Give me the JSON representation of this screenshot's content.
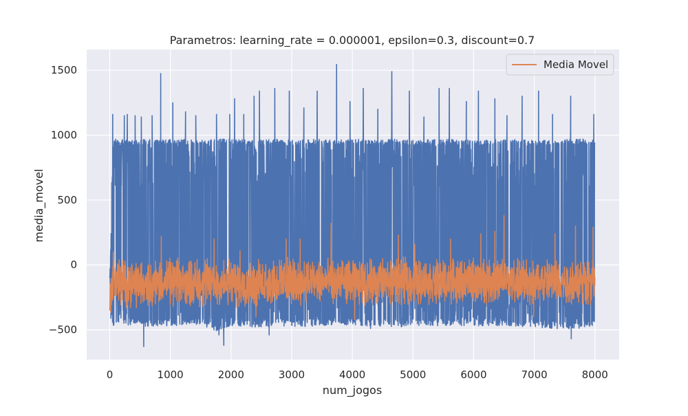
{
  "chart_data": {
    "type": "line",
    "title": "Parametros: learning_rate = 0.000001, epsilon=0.3, discount=0.7",
    "xlabel": "num_jogos",
    "ylabel": "media_movel",
    "xlim": [
      -380,
      8400
    ],
    "ylim": [
      -730,
      1660
    ],
    "xticks": [
      0,
      1000,
      2000,
      3000,
      4000,
      5000,
      6000,
      7000,
      8000
    ],
    "xtick_labels": [
      "0",
      "1000",
      "2000",
      "3000",
      "4000",
      "5000",
      "6000",
      "7000",
      "8000"
    ],
    "yticks": [
      -500,
      0,
      500,
      1000,
      1500
    ],
    "ytick_labels": [
      "−500",
      "0",
      "500",
      "1000",
      "1500"
    ],
    "grid": true,
    "legend_position": "top-right",
    "legend_entries": [
      "Media Movel"
    ],
    "series": [
      {
        "id": "raw",
        "color": "#4c72b0",
        "n_points": 8000,
        "x_range": [
          0,
          8000
        ],
        "envelope": {
          "x": [
            0,
            20,
            40,
            60,
            100,
            200,
            400,
            600,
            800,
            1000,
            1500,
            1800,
            2000,
            2400,
            2800,
            3000,
            3500,
            3700,
            4000,
            4500,
            4650,
            5000,
            5500,
            6000,
            6500,
            7000,
            7600,
            8000
          ],
          "low": [
            -460,
            -420,
            -440,
            -480,
            -470,
            -470,
            -460,
            -480,
            -470,
            -470,
            -460,
            -520,
            -470,
            -480,
            -470,
            -480,
            -470,
            -460,
            -470,
            -470,
            -480,
            -480,
            -470,
            -470,
            -470,
            -480,
            -500,
            -470
          ],
          "high": [
            -90,
            200,
            850,
            950,
            970,
            970,
            960,
            970,
            960,
            970,
            960,
            970,
            970,
            960,
            970,
            960,
            970,
            960,
            970,
            960,
            970,
            960,
            970,
            960,
            970,
            960,
            970,
            970
          ]
        },
        "peaks": [
          {
            "x": 50,
            "y": 1160
          },
          {
            "x": 240,
            "y": 1150
          },
          {
            "x": 290,
            "y": 1160
          },
          {
            "x": 420,
            "y": 1150
          },
          {
            "x": 520,
            "y": 1140
          },
          {
            "x": 700,
            "y": 1150
          },
          {
            "x": 840,
            "y": 1475
          },
          {
            "x": 1040,
            "y": 1250
          },
          {
            "x": 1250,
            "y": 1180
          },
          {
            "x": 1420,
            "y": 1150
          },
          {
            "x": 1760,
            "y": 1160
          },
          {
            "x": 1980,
            "y": 1160
          },
          {
            "x": 2060,
            "y": 1280
          },
          {
            "x": 2210,
            "y": 1160
          },
          {
            "x": 2380,
            "y": 1300
          },
          {
            "x": 2470,
            "y": 1340
          },
          {
            "x": 2720,
            "y": 1360
          },
          {
            "x": 2960,
            "y": 1340
          },
          {
            "x": 3200,
            "y": 1210
          },
          {
            "x": 3420,
            "y": 1340
          },
          {
            "x": 3740,
            "y": 1545
          },
          {
            "x": 3960,
            "y": 1260
          },
          {
            "x": 4180,
            "y": 1360
          },
          {
            "x": 4420,
            "y": 1200
          },
          {
            "x": 4650,
            "y": 1490
          },
          {
            "x": 4940,
            "y": 1340
          },
          {
            "x": 5180,
            "y": 1140
          },
          {
            "x": 5430,
            "y": 1360
          },
          {
            "x": 5600,
            "y": 1360
          },
          {
            "x": 5880,
            "y": 1260
          },
          {
            "x": 6080,
            "y": 1340
          },
          {
            "x": 6350,
            "y": 1280
          },
          {
            "x": 6550,
            "y": 1150
          },
          {
            "x": 6800,
            "y": 1300
          },
          {
            "x": 7070,
            "y": 1340
          },
          {
            "x": 7300,
            "y": 1160
          },
          {
            "x": 7600,
            "y": 1300
          },
          {
            "x": 7980,
            "y": 1160
          }
        ],
        "troughs": [
          {
            "x": 560,
            "y": -630
          },
          {
            "x": 1800,
            "y": -540
          },
          {
            "x": 1880,
            "y": -620
          },
          {
            "x": 2630,
            "y": -540
          },
          {
            "x": 4300,
            "y": -490
          },
          {
            "x": 7610,
            "y": -570
          }
        ]
      },
      {
        "id": "media-movel",
        "name": "Media Movel",
        "color": "#dd8452",
        "n_points": 8000,
        "x_range": [
          0,
          8000
        ],
        "envelope": {
          "x": [
            0,
            20,
            60,
            100,
            200,
            500,
            900,
            1500,
            2000,
            2400,
            2800,
            3200,
            3700,
            4000,
            4600,
            5000,
            5500,
            6000,
            6500,
            7000,
            7600,
            8000
          ],
          "low": [
            -440,
            -380,
            -300,
            -320,
            -330,
            -330,
            -320,
            -330,
            -340,
            -330,
            -320,
            -310,
            -300,
            -310,
            -320,
            -310,
            -300,
            -310,
            -300,
            -310,
            -320,
            -300
          ],
          "high": [
            -140,
            -40,
            60,
            70,
            60,
            40,
            50,
            60,
            50,
            40,
            60,
            60,
            50,
            40,
            60,
            60,
            40,
            60,
            60,
            50,
            60,
            50
          ]
        },
        "peaks": [
          {
            "x": 60,
            "y": 100
          },
          {
            "x": 850,
            "y": 220
          },
          {
            "x": 1720,
            "y": 200
          },
          {
            "x": 2150,
            "y": 110
          },
          {
            "x": 2910,
            "y": 200
          },
          {
            "x": 3140,
            "y": 200
          },
          {
            "x": 3650,
            "y": 320
          },
          {
            "x": 4760,
            "y": 230
          },
          {
            "x": 5030,
            "y": 160
          },
          {
            "x": 5620,
            "y": 200
          },
          {
            "x": 6120,
            "y": 240
          },
          {
            "x": 6350,
            "y": 260
          },
          {
            "x": 6500,
            "y": 380
          },
          {
            "x": 7340,
            "y": 240
          },
          {
            "x": 7680,
            "y": 300
          },
          {
            "x": 7970,
            "y": 290
          }
        ],
        "troughs": [
          {
            "x": 2410,
            "y": -400
          },
          {
            "x": 4040,
            "y": -420
          },
          {
            "x": 6990,
            "y": -400
          }
        ]
      }
    ]
  }
}
